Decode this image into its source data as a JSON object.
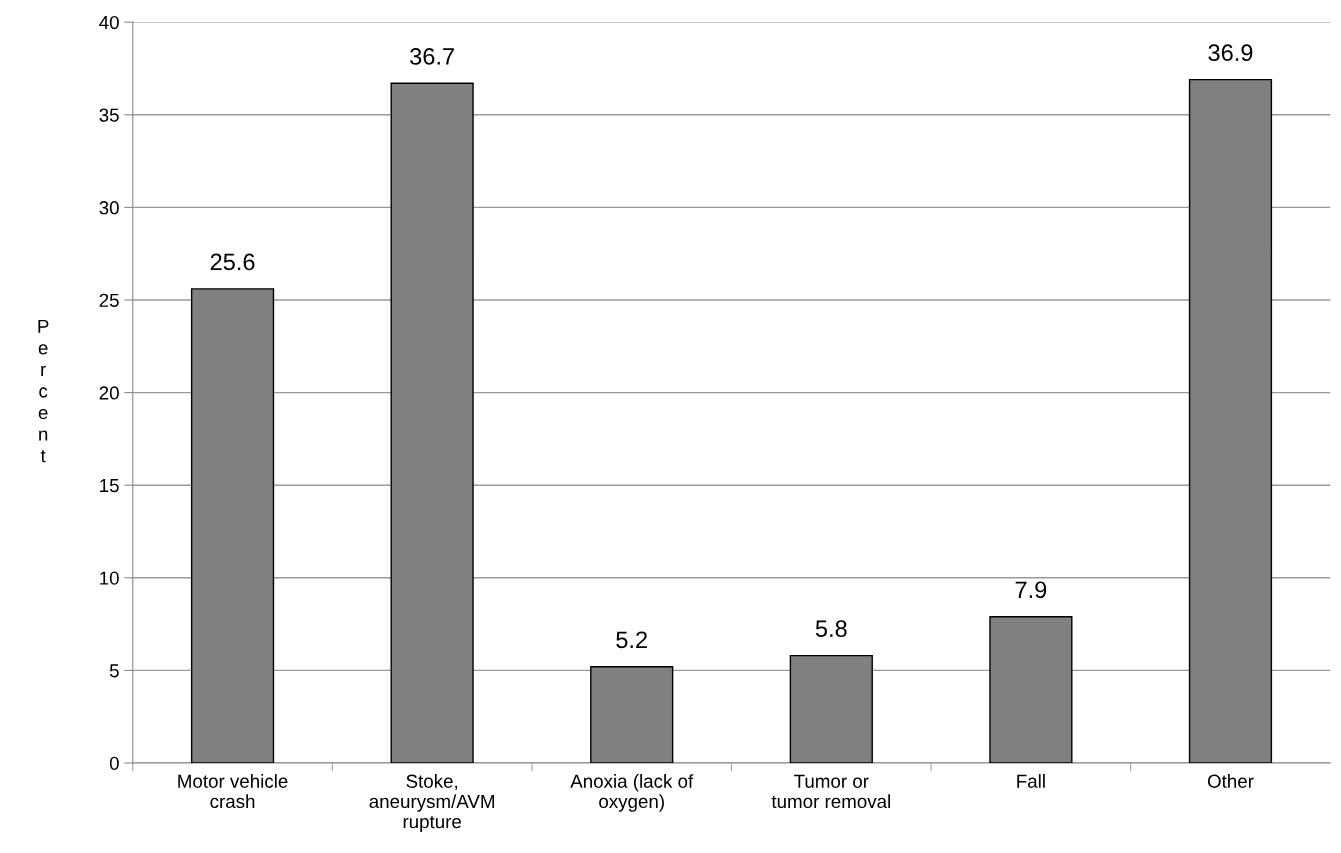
{
  "chart_data": {
    "type": "bar",
    "ylabel": "Percent",
    "categories": [
      "Motor vehicle\ncrash",
      "Stoke,\naneurysm/AVM\nrupture",
      "Anoxia (lack of\noxygen)",
      "Tumor or\ntumor removal",
      "Fall",
      "Other"
    ],
    "values": [
      25.6,
      36.7,
      5.2,
      5.8,
      7.9,
      36.9
    ],
    "color": "#808080",
    "ylim": [
      0,
      40
    ],
    "yticks": [
      0,
      5,
      10,
      15,
      20,
      25,
      30,
      35,
      40
    ],
    "grid": "y",
    "data_labels": true
  }
}
